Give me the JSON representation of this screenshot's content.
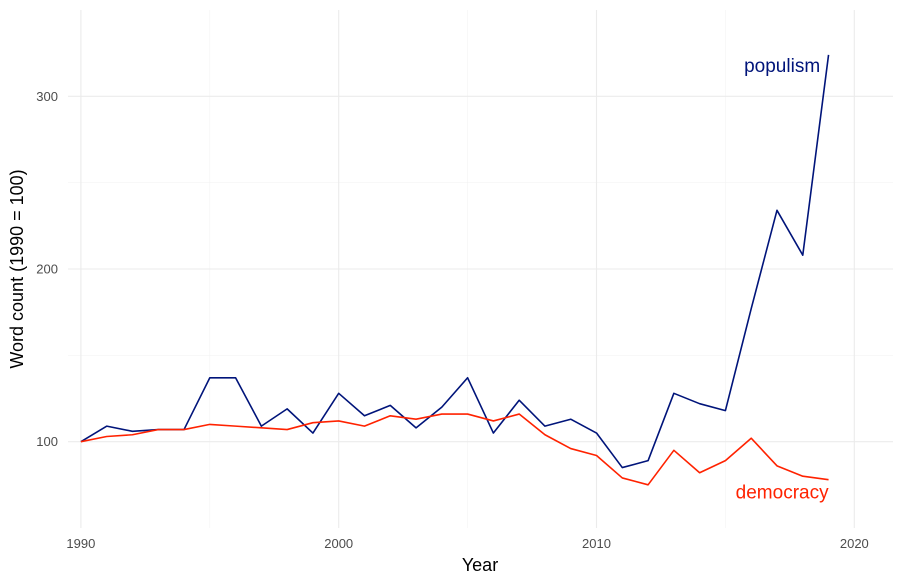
{
  "chart_data": {
    "type": "line",
    "xlabel": "Year",
    "ylabel": "Word count (1990 = 100)",
    "xlim": [
      1989.5,
      2021.5
    ],
    "ylim": [
      50,
      350
    ],
    "x_ticks": [
      1990,
      2000,
      2010,
      2020
    ],
    "y_ticks": [
      100,
      200,
      300
    ],
    "grid": true,
    "legend": "direct labels",
    "x": [
      1990,
      1991,
      1992,
      1993,
      1994,
      1995,
      1996,
      1997,
      1998,
      1999,
      2000,
      2001,
      2002,
      2003,
      2004,
      2005,
      2006,
      2007,
      2008,
      2009,
      2010,
      2011,
      2012,
      2013,
      2014,
      2015,
      2016,
      2017,
      2018,
      2019
    ],
    "series": [
      {
        "name": "populism",
        "color": "#00147a",
        "label_pos": {
          "x": 2017.2,
          "y": 314
        },
        "values": [
          100,
          109,
          106,
          107,
          107,
          137,
          137,
          109,
          119,
          105,
          128,
          115,
          121,
          108,
          120,
          137,
          105,
          124,
          109,
          113,
          105,
          85,
          89,
          128,
          122,
          118,
          177,
          234,
          208,
          324
        ]
      },
      {
        "name": "democracy",
        "color": "#ff2200",
        "label_pos": {
          "x": 2017.2,
          "y": 67
        },
        "values": [
          100,
          103,
          104,
          107,
          107,
          110,
          109,
          108,
          107,
          111,
          112,
          109,
          115,
          113,
          116,
          116,
          112,
          116,
          104,
          96,
          92,
          79,
          75,
          95,
          82,
          89,
          102,
          86,
          80,
          78
        ]
      }
    ]
  }
}
